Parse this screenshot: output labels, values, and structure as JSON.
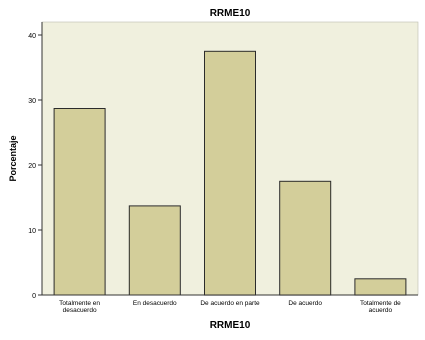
{
  "chart_data": {
    "type": "bar",
    "title": "RRME10",
    "xlabel": "RRME10",
    "ylabel": "Porcentaje",
    "categories": [
      [
        "Totalmente en",
        "desacuerdo"
      ],
      [
        "En desacuerdo"
      ],
      [
        "De acuerdo en parte"
      ],
      [
        "De acuerdo"
      ],
      [
        "Totalmente de",
        "acuerdo"
      ]
    ],
    "values": [
      28.7,
      13.7,
      37.5,
      17.5,
      2.5
    ],
    "ylim": [
      0,
      42
    ],
    "yticks": [
      0,
      10,
      20,
      30,
      40
    ],
    "grid": false,
    "legend": "none",
    "colors": {
      "plot_background": "#f0f0de",
      "bar_fill": "#d3ce9a",
      "bar_stroke": "#2b2b2b",
      "axis": "#333333",
      "text": "#000000"
    }
  }
}
